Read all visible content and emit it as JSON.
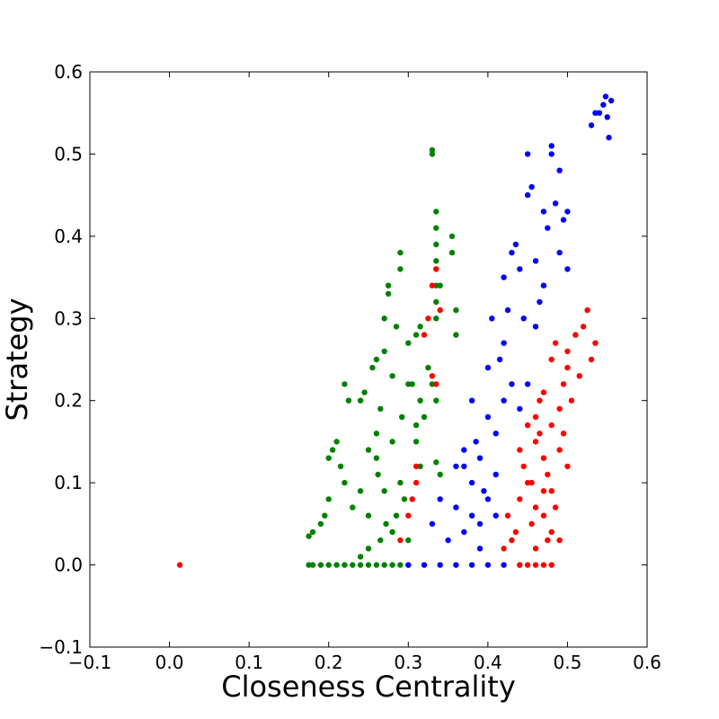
{
  "chart_data": {
    "type": "scatter",
    "title": "",
    "xlabel": "Closeness Centrality",
    "ylabel": "Strategy",
    "xlim": [
      -0.1,
      0.6
    ],
    "ylim": [
      -0.1,
      0.6
    ],
    "xticks": [
      -0.1,
      0.0,
      0.1,
      0.2,
      0.3,
      0.4,
      0.5,
      0.6
    ],
    "yticks": [
      -0.1,
      0.0,
      0.1,
      0.2,
      0.3,
      0.4,
      0.5,
      0.6
    ],
    "xtick_labels": [
      "−0.1",
      "0.0",
      "0.1",
      "0.2",
      "0.3",
      "0.4",
      "0.5",
      "0.6"
    ],
    "ytick_labels": [
      "−0.1",
      "0.0",
      "0.1",
      "0.2",
      "0.3",
      "0.4",
      "0.5",
      "0.6"
    ],
    "grid": false,
    "legend": "none",
    "colors": {
      "green": "#008000",
      "blue": "#0000ff",
      "red": "#ff0000"
    },
    "series": [
      {
        "color": "green",
        "points": [
          [
            0.175,
            0.0
          ],
          [
            0.18,
            0.0
          ],
          [
            0.19,
            0.0
          ],
          [
            0.2,
            0.0
          ],
          [
            0.21,
            0.0
          ],
          [
            0.22,
            0.0
          ],
          [
            0.23,
            0.0
          ],
          [
            0.24,
            0.0
          ],
          [
            0.25,
            0.0
          ],
          [
            0.26,
            0.0
          ],
          [
            0.27,
            0.0
          ],
          [
            0.28,
            0.0
          ],
          [
            0.29,
            0.0
          ],
          [
            0.3,
            0.0
          ],
          [
            0.175,
            0.035
          ],
          [
            0.18,
            0.04
          ],
          [
            0.19,
            0.05
          ],
          [
            0.195,
            0.06
          ],
          [
            0.2,
            0.08
          ],
          [
            0.2,
            0.13
          ],
          [
            0.205,
            0.14
          ],
          [
            0.21,
            0.15
          ],
          [
            0.215,
            0.12
          ],
          [
            0.22,
            0.1
          ],
          [
            0.22,
            0.22
          ],
          [
            0.225,
            0.2
          ],
          [
            0.23,
            0.07
          ],
          [
            0.24,
            0.09
          ],
          [
            0.24,
            0.2
          ],
          [
            0.245,
            0.21
          ],
          [
            0.25,
            0.06
          ],
          [
            0.25,
            0.14
          ],
          [
            0.255,
            0.24
          ],
          [
            0.26,
            0.25
          ],
          [
            0.26,
            0.16
          ],
          [
            0.262,
            0.11
          ],
          [
            0.265,
            0.19
          ],
          [
            0.27,
            0.3
          ],
          [
            0.27,
            0.26
          ],
          [
            0.272,
            0.05
          ],
          [
            0.275,
            0.33
          ],
          [
            0.275,
            0.34
          ],
          [
            0.28,
            0.15
          ],
          [
            0.28,
            0.23
          ],
          [
            0.285,
            0.29
          ],
          [
            0.29,
            0.38
          ],
          [
            0.29,
            0.36
          ],
          [
            0.292,
            0.18
          ],
          [
            0.295,
            0.08
          ],
          [
            0.3,
            0.27
          ],
          [
            0.3,
            0.03
          ],
          [
            0.305,
            0.22
          ],
          [
            0.31,
            0.17
          ],
          [
            0.315,
            0.12
          ],
          [
            0.33,
            0.5
          ],
          [
            0.33,
            0.505
          ],
          [
            0.335,
            0.43
          ],
          [
            0.335,
            0.41
          ],
          [
            0.335,
            0.39
          ],
          [
            0.335,
            0.37
          ],
          [
            0.335,
            0.36
          ],
          [
            0.335,
            0.34
          ],
          [
            0.335,
            0.32
          ],
          [
            0.335,
            0.3
          ],
          [
            0.335,
            0.2
          ],
          [
            0.335,
            0.125
          ],
          [
            0.34,
            0.11
          ],
          [
            0.34,
            0.34
          ],
          [
            0.355,
            0.4
          ],
          [
            0.355,
            0.38
          ],
          [
            0.36,
            0.31
          ],
          [
            0.36,
            0.28
          ],
          [
            0.31,
            0.28
          ],
          [
            0.315,
            0.29
          ],
          [
            0.26,
            0.13
          ],
          [
            0.27,
            0.09
          ],
          [
            0.28,
            0.04
          ],
          [
            0.24,
            0.01
          ],
          [
            0.25,
            0.02
          ],
          [
            0.265,
            0.03
          ],
          [
            0.285,
            0.06
          ],
          [
            0.29,
            0.1
          ],
          [
            0.3,
            0.22
          ],
          [
            0.31,
            0.15
          ],
          [
            0.315,
            0.2
          ],
          [
            0.32,
            0.18
          ],
          [
            0.325,
            0.24
          ],
          [
            0.33,
            0.22
          ]
        ]
      },
      {
        "color": "blue",
        "points": [
          [
            0.3,
            0.0
          ],
          [
            0.32,
            0.0
          ],
          [
            0.34,
            0.0
          ],
          [
            0.36,
            0.0
          ],
          [
            0.38,
            0.0
          ],
          [
            0.4,
            0.0
          ],
          [
            0.42,
            0.0
          ],
          [
            0.44,
            0.0
          ],
          [
            0.33,
            0.05
          ],
          [
            0.34,
            0.08
          ],
          [
            0.35,
            0.03
          ],
          [
            0.36,
            0.07
          ],
          [
            0.37,
            0.12
          ],
          [
            0.37,
            0.04
          ],
          [
            0.38,
            0.1
          ],
          [
            0.38,
            0.2
          ],
          [
            0.385,
            0.15
          ],
          [
            0.39,
            0.02
          ],
          [
            0.39,
            0.13
          ],
          [
            0.395,
            0.09
          ],
          [
            0.4,
            0.18
          ],
          [
            0.4,
            0.24
          ],
          [
            0.405,
            0.3
          ],
          [
            0.41,
            0.06
          ],
          [
            0.41,
            0.11
          ],
          [
            0.415,
            0.25
          ],
          [
            0.42,
            0.35
          ],
          [
            0.42,
            0.2
          ],
          [
            0.425,
            0.31
          ],
          [
            0.43,
            0.38
          ],
          [
            0.435,
            0.39
          ],
          [
            0.44,
            0.36
          ],
          [
            0.445,
            0.3
          ],
          [
            0.45,
            0.45
          ],
          [
            0.455,
            0.46
          ],
          [
            0.46,
            0.37
          ],
          [
            0.47,
            0.34
          ],
          [
            0.47,
            0.43
          ],
          [
            0.475,
            0.41
          ],
          [
            0.48,
            0.5
          ],
          [
            0.48,
            0.51
          ],
          [
            0.485,
            0.44
          ],
          [
            0.49,
            0.48
          ],
          [
            0.495,
            0.42
          ],
          [
            0.5,
            0.36
          ],
          [
            0.5,
            0.43
          ],
          [
            0.45,
            0.5
          ],
          [
            0.49,
            0.38
          ],
          [
            0.53,
            0.535
          ],
          [
            0.535,
            0.55
          ],
          [
            0.54,
            0.55
          ],
          [
            0.545,
            0.56
          ],
          [
            0.548,
            0.57
          ],
          [
            0.55,
            0.545
          ],
          [
            0.552,
            0.52
          ],
          [
            0.555,
            0.565
          ],
          [
            0.36,
            0.12
          ],
          [
            0.37,
            0.14
          ],
          [
            0.38,
            0.06
          ],
          [
            0.39,
            0.05
          ],
          [
            0.4,
            0.08
          ],
          [
            0.41,
            0.16
          ],
          [
            0.42,
            0.27
          ],
          [
            0.43,
            0.22
          ],
          [
            0.44,
            0.19
          ],
          [
            0.45,
            0.22
          ],
          [
            0.46,
            0.29
          ],
          [
            0.465,
            0.32
          ]
        ]
      },
      {
        "color": "red",
        "points": [
          [
            0.013,
            0.0
          ],
          [
            0.44,
            0.0
          ],
          [
            0.45,
            0.0
          ],
          [
            0.46,
            0.0
          ],
          [
            0.47,
            0.0
          ],
          [
            0.48,
            0.0
          ],
          [
            0.29,
            0.03
          ],
          [
            0.3,
            0.06
          ],
          [
            0.305,
            0.08
          ],
          [
            0.31,
            0.1
          ],
          [
            0.31,
            0.12
          ],
          [
            0.32,
            0.28
          ],
          [
            0.325,
            0.3
          ],
          [
            0.33,
            0.34
          ],
          [
            0.335,
            0.36
          ],
          [
            0.34,
            0.31
          ],
          [
            0.33,
            0.23
          ],
          [
            0.335,
            0.22
          ],
          [
            0.42,
            0.02
          ],
          [
            0.425,
            0.06
          ],
          [
            0.43,
            0.03
          ],
          [
            0.435,
            0.04
          ],
          [
            0.44,
            0.08
          ],
          [
            0.445,
            0.12
          ],
          [
            0.45,
            0.1
          ],
          [
            0.455,
            0.05
          ],
          [
            0.46,
            0.15
          ],
          [
            0.46,
            0.07
          ],
          [
            0.465,
            0.2
          ],
          [
            0.47,
            0.13
          ],
          [
            0.47,
            0.06
          ],
          [
            0.475,
            0.11
          ],
          [
            0.48,
            0.17
          ],
          [
            0.48,
            0.25
          ],
          [
            0.485,
            0.27
          ],
          [
            0.49,
            0.19
          ],
          [
            0.49,
            0.03
          ],
          [
            0.495,
            0.22
          ],
          [
            0.5,
            0.24
          ],
          [
            0.5,
            0.26
          ],
          [
            0.505,
            0.2
          ],
          [
            0.51,
            0.28
          ],
          [
            0.515,
            0.23
          ],
          [
            0.52,
            0.29
          ],
          [
            0.525,
            0.31
          ],
          [
            0.53,
            0.25
          ],
          [
            0.535,
            0.27
          ],
          [
            0.44,
            0.14
          ],
          [
            0.45,
            0.17
          ],
          [
            0.46,
            0.02
          ],
          [
            0.47,
            0.09
          ],
          [
            0.48,
            0.04
          ],
          [
            0.49,
            0.14
          ],
          [
            0.5,
            0.12
          ],
          [
            0.46,
            0.18
          ],
          [
            0.47,
            0.21
          ],
          [
            0.48,
            0.09
          ],
          [
            0.455,
            0.1
          ],
          [
            0.465,
            0.16
          ],
          [
            0.475,
            0.03
          ],
          [
            0.485,
            0.07
          ],
          [
            0.495,
            0.16
          ]
        ]
      }
    ]
  }
}
